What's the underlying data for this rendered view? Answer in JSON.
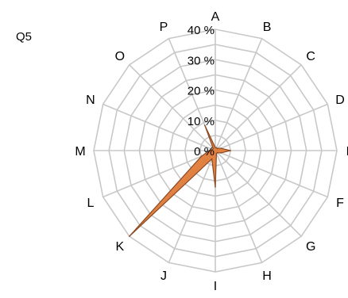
{
  "chart_data": {
    "type": "radar",
    "title": "Q5",
    "categories": [
      "A",
      "B",
      "C",
      "D",
      "E",
      "F",
      "G",
      "H",
      "I",
      "J",
      "K",
      "L",
      "M",
      "N",
      "O",
      "P"
    ],
    "rlim": [
      0,
      40
    ],
    "ticks": [
      "0 %",
      "10 %",
      "20 %",
      "30 %",
      "40 %"
    ],
    "tick_values": [
      0,
      10,
      20,
      30,
      40
    ],
    "series": [
      {
        "values": [
          1,
          1,
          1,
          2,
          5,
          2,
          1,
          1,
          12,
          3,
          40,
          5,
          2,
          1,
          1,
          9
        ]
      }
    ],
    "grid": true
  },
  "colors": {
    "grid": "#c8c8c8",
    "fill": "#e07b39",
    "stroke": "#8a4a22"
  }
}
